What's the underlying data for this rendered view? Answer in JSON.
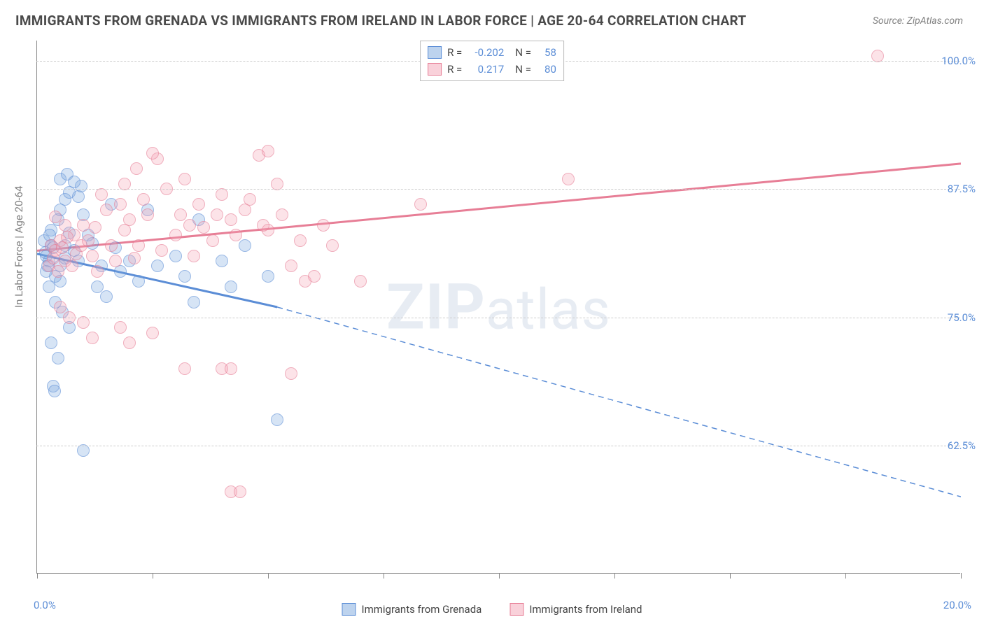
{
  "title": "IMMIGRANTS FROM GRENADA VS IMMIGRANTS FROM IRELAND IN LABOR FORCE | AGE 20-64 CORRELATION CHART",
  "source": "Source: ZipAtlas.com",
  "ylabel": "In Labor Force | Age 20-64",
  "watermark_prefix": "ZIP",
  "watermark_suffix": "atlas",
  "chart": {
    "type": "scatter",
    "background_color": "#ffffff",
    "grid_color": "#cccccc",
    "axis_color": "#888888",
    "xlim": [
      0,
      20
    ],
    "ylim": [
      50,
      102
    ],
    "xtick_positions": [
      0,
      2.5,
      5,
      7.5,
      10,
      12.5,
      15,
      17.5,
      20
    ],
    "xtick_labels": {
      "0": "0.0%",
      "20": "20.0%"
    },
    "ytick_positions": [
      62.5,
      75,
      87.5,
      100
    ],
    "ytick_labels": [
      "62.5%",
      "75.0%",
      "87.5%",
      "100.0%"
    ],
    "series": [
      {
        "name": "Immigrants from Grenada",
        "key": "grenada",
        "color": "#5b8dd6",
        "fill": "rgba(123,167,222,0.5)",
        "R": "-0.202",
        "N": "58",
        "trend": {
          "x1": 0,
          "y1": 81.2,
          "x2_solid": 5.2,
          "y2_solid": 76.0,
          "x2": 20,
          "y2": 57.5
        },
        "points": [
          [
            0.2,
            81
          ],
          [
            0.3,
            82
          ],
          [
            0.25,
            80.5
          ],
          [
            0.4,
            79
          ],
          [
            0.5,
            78.5
          ],
          [
            0.3,
            83.5
          ],
          [
            0.45,
            84.5
          ],
          [
            0.6,
            86.5
          ],
          [
            0.7,
            87.2
          ],
          [
            0.5,
            88.5
          ],
          [
            0.65,
            89.0
          ],
          [
            0.9,
            86.8
          ],
          [
            1.0,
            85.0
          ],
          [
            1.1,
            83.0
          ],
          [
            0.4,
            76.5
          ],
          [
            0.55,
            75.5
          ],
          [
            0.7,
            74.0
          ],
          [
            0.3,
            72.5
          ],
          [
            0.45,
            71.0
          ],
          [
            0.35,
            68.3
          ],
          [
            0.38,
            67.8
          ],
          [
            0.2,
            79.5
          ],
          [
            0.25,
            78.0
          ],
          [
            0.5,
            80.0
          ],
          [
            0.6,
            80.8
          ],
          [
            0.8,
            81.5
          ],
          [
            1.2,
            82.2
          ],
          [
            1.3,
            78.0
          ],
          [
            1.5,
            77.0
          ],
          [
            1.6,
            86.0
          ],
          [
            1.8,
            79.5
          ],
          [
            2.0,
            80.5
          ],
          [
            2.2,
            78.5
          ],
          [
            2.4,
            85.5
          ],
          [
            2.6,
            80.0
          ],
          [
            3.0,
            81.0
          ],
          [
            3.2,
            79.0
          ],
          [
            3.4,
            76.5
          ],
          [
            3.5,
            84.5
          ],
          [
            4.0,
            80.5
          ],
          [
            4.2,
            78.0
          ],
          [
            4.5,
            82.0
          ],
          [
            5.0,
            79.0
          ],
          [
            5.2,
            65.0
          ],
          [
            1.0,
            62.0
          ],
          [
            0.95,
            87.8
          ],
          [
            0.8,
            88.2
          ],
          [
            1.4,
            80.0
          ],
          [
            1.7,
            81.8
          ],
          [
            0.15,
            82.5
          ],
          [
            0.18,
            81.3
          ],
          [
            0.22,
            80.0
          ],
          [
            0.35,
            81.8
          ],
          [
            0.28,
            83.0
          ],
          [
            0.6,
            82.0
          ],
          [
            0.7,
            83.2
          ],
          [
            0.9,
            80.5
          ],
          [
            0.5,
            85.5
          ]
        ]
      },
      {
        "name": "Immigrants from Ireland",
        "key": "ireland",
        "color": "#e77e96",
        "fill": "rgba(243,163,181,0.5)",
        "R": "0.217",
        "N": "80",
        "trend": {
          "x1": 0,
          "y1": 81.5,
          "x2_solid": 20,
          "y2_solid": 90.0,
          "x2": 20,
          "y2": 90.0
        },
        "points": [
          [
            0.3,
            82
          ],
          [
            0.4,
            81.5
          ],
          [
            0.5,
            82.5
          ],
          [
            0.6,
            80.5
          ],
          [
            0.8,
            83.0
          ],
          [
            1.0,
            84.0
          ],
          [
            1.2,
            81.0
          ],
          [
            1.3,
            79.5
          ],
          [
            1.5,
            85.5
          ],
          [
            1.4,
            87.0
          ],
          [
            1.8,
            86.0
          ],
          [
            1.9,
            83.5
          ],
          [
            2.0,
            84.5
          ],
          [
            2.2,
            82.0
          ],
          [
            2.4,
            85.0
          ],
          [
            2.6,
            90.5
          ],
          [
            2.5,
            91.0
          ],
          [
            2.8,
            87.5
          ],
          [
            3.0,
            83.0
          ],
          [
            3.2,
            88.5
          ],
          [
            3.3,
            84.0
          ],
          [
            3.5,
            86.0
          ],
          [
            3.8,
            82.5
          ],
          [
            4.0,
            87.0
          ],
          [
            4.2,
            84.5
          ],
          [
            4.5,
            85.5
          ],
          [
            4.8,
            90.8
          ],
          [
            5.0,
            91.2
          ],
          [
            5.0,
            83.5
          ],
          [
            5.2,
            88.0
          ],
          [
            5.5,
            80.0
          ],
          [
            5.8,
            78.5
          ],
          [
            6.0,
            79.0
          ],
          [
            6.4,
            82.0
          ],
          [
            7.0,
            78.5
          ],
          [
            8.3,
            86.0
          ],
          [
            11.5,
            88.5
          ],
          [
            18.2,
            100.5
          ],
          [
            0.5,
            76.0
          ],
          [
            0.7,
            75.0
          ],
          [
            1.0,
            74.5
          ],
          [
            1.2,
            73.0
          ],
          [
            1.8,
            74.0
          ],
          [
            2.0,
            72.5
          ],
          [
            2.5,
            73.5
          ],
          [
            3.2,
            70.0
          ],
          [
            4.0,
            70.0
          ],
          [
            4.2,
            70.0
          ],
          [
            5.5,
            69.5
          ],
          [
            4.2,
            58.0
          ],
          [
            4.4,
            58.0
          ],
          [
            0.25,
            80
          ],
          [
            0.35,
            80.8
          ],
          [
            0.45,
            79.5
          ],
          [
            0.55,
            81.8
          ],
          [
            0.65,
            82.8
          ],
          [
            0.75,
            80.0
          ],
          [
            0.85,
            81.2
          ],
          [
            0.95,
            82.0
          ],
          [
            1.1,
            82.5
          ],
          [
            1.25,
            83.8
          ],
          [
            1.6,
            82.0
          ],
          [
            1.7,
            80.5
          ],
          [
            2.1,
            80.8
          ],
          [
            2.3,
            86.5
          ],
          [
            2.7,
            81.5
          ],
          [
            3.1,
            85.0
          ],
          [
            3.4,
            81.0
          ],
          [
            3.6,
            83.8
          ],
          [
            3.9,
            85.0
          ],
          [
            4.3,
            83.0
          ],
          [
            4.6,
            86.5
          ],
          [
            4.9,
            84.0
          ],
          [
            5.3,
            85.0
          ],
          [
            5.7,
            82.5
          ],
          [
            6.2,
            84.0
          ],
          [
            1.9,
            88.0
          ],
          [
            2.15,
            89.5
          ],
          [
            0.6,
            84.0
          ],
          [
            0.4,
            84.8
          ]
        ]
      }
    ]
  },
  "legend_bottom": [
    {
      "label": "Immigrants from Grenada",
      "key": "blue"
    },
    {
      "label": "Immigrants from Ireland",
      "key": "pink"
    }
  ]
}
